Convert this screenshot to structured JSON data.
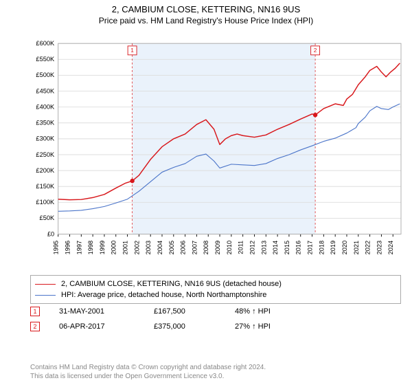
{
  "title": "2, CAMBIUM CLOSE, KETTERING, NN16 9US",
  "subtitle": "Price paid vs. HM Land Registry's House Price Index (HPI)",
  "chart": {
    "type": "line",
    "background_color": "#ffffff",
    "band_color": "#eaf2fb",
    "panel_border": "#aaaaaa",
    "grid_color": "#dddddd",
    "axis_font_size": 10,
    "x_years": [
      1995,
      1996,
      1997,
      1998,
      1999,
      2000,
      2001,
      2002,
      2003,
      2004,
      2005,
      2006,
      2007,
      2008,
      2009,
      2010,
      2011,
      2012,
      2013,
      2014,
      2015,
      2016,
      2017,
      2018,
      2019,
      2020,
      2021,
      2022,
      2023,
      2024
    ],
    "ylim": [
      0,
      600000
    ],
    "ytick_step": 50000,
    "ytick_format_prefix": "£",
    "ytick_format_suffix": "K",
    "series": [
      {
        "name": "price_paid",
        "label": "2, CAMBIUM CLOSE, KETTERING, NN16 9US (detached house)",
        "color": "#d8181c",
        "width": 1.6,
        "points": [
          [
            1995.0,
            110000
          ],
          [
            1996.0,
            108000
          ],
          [
            1997.0,
            109000
          ],
          [
            1998.0,
            115000
          ],
          [
            1999.0,
            125000
          ],
          [
            2000.0,
            145000
          ],
          [
            2000.8,
            160000
          ],
          [
            2001.42,
            167500
          ],
          [
            2002.0,
            185000
          ],
          [
            2003.0,
            235000
          ],
          [
            2004.0,
            275000
          ],
          [
            2005.0,
            300000
          ],
          [
            2006.0,
            315000
          ],
          [
            2007.0,
            345000
          ],
          [
            2007.8,
            360000
          ],
          [
            2008.5,
            330000
          ],
          [
            2009.0,
            282000
          ],
          [
            2009.5,
            300000
          ],
          [
            2010.0,
            310000
          ],
          [
            2010.5,
            315000
          ],
          [
            2011.0,
            310000
          ],
          [
            2012.0,
            305000
          ],
          [
            2013.0,
            312000
          ],
          [
            2014.0,
            330000
          ],
          [
            2015.0,
            345000
          ],
          [
            2016.0,
            362000
          ],
          [
            2017.0,
            378000
          ],
          [
            2017.27,
            375000
          ],
          [
            2018.0,
            395000
          ],
          [
            2019.0,
            410000
          ],
          [
            2019.7,
            405000
          ],
          [
            2020.0,
            425000
          ],
          [
            2020.5,
            440000
          ],
          [
            2021.0,
            470000
          ],
          [
            2021.6,
            495000
          ],
          [
            2022.0,
            515000
          ],
          [
            2022.6,
            528000
          ],
          [
            2023.0,
            510000
          ],
          [
            2023.4,
            495000
          ],
          [
            2023.8,
            510000
          ],
          [
            2024.2,
            522000
          ],
          [
            2024.6,
            538000
          ]
        ]
      },
      {
        "name": "hpi",
        "label": "HPI: Average price, detached house, North Northamptonshire",
        "color": "#4a74c9",
        "width": 1.2,
        "points": [
          [
            1995.0,
            72000
          ],
          [
            1996.0,
            73000
          ],
          [
            1997.0,
            75000
          ],
          [
            1998.0,
            80000
          ],
          [
            1999.0,
            87000
          ],
          [
            2000.0,
            98000
          ],
          [
            2001.0,
            110000
          ],
          [
            2002.0,
            135000
          ],
          [
            2003.0,
            165000
          ],
          [
            2004.0,
            195000
          ],
          [
            2005.0,
            210000
          ],
          [
            2006.0,
            222000
          ],
          [
            2007.0,
            245000
          ],
          [
            2007.8,
            252000
          ],
          [
            2008.5,
            230000
          ],
          [
            2009.0,
            208000
          ],
          [
            2010.0,
            220000
          ],
          [
            2011.0,
            218000
          ],
          [
            2012.0,
            216000
          ],
          [
            2013.0,
            222000
          ],
          [
            2014.0,
            238000
          ],
          [
            2015.0,
            250000
          ],
          [
            2016.0,
            265000
          ],
          [
            2017.0,
            278000
          ],
          [
            2018.0,
            292000
          ],
          [
            2019.0,
            302000
          ],
          [
            2020.0,
            318000
          ],
          [
            2020.8,
            335000
          ],
          [
            2021.0,
            348000
          ],
          [
            2021.6,
            368000
          ],
          [
            2022.0,
            388000
          ],
          [
            2022.6,
            402000
          ],
          [
            2023.0,
            395000
          ],
          [
            2023.6,
            392000
          ],
          [
            2024.0,
            400000
          ],
          [
            2024.6,
            410000
          ]
        ]
      }
    ],
    "sale_markers": [
      {
        "n": "1",
        "year": 2001.42,
        "value": 167500,
        "color": "#d8181c"
      },
      {
        "n": "2",
        "year": 2017.27,
        "value": 375000,
        "color": "#d8181c"
      }
    ],
    "marker_line_color": "#d8181c",
    "marker_line_dash": "3,3"
  },
  "legend": {
    "border": "#aaaaaa",
    "rows": [
      {
        "color": "#d8181c",
        "label": "2, CAMBIUM CLOSE, KETTERING, NN16 9US (detached house)"
      },
      {
        "color": "#4a74c9",
        "label": "HPI: Average price, detached house, North Northamptonshire"
      }
    ]
  },
  "marker_table": {
    "rows": [
      {
        "n": "1",
        "date": "31-MAY-2001",
        "price": "£167,500",
        "delta": "48% ↑ HPI",
        "color": "#d8181c"
      },
      {
        "n": "2",
        "date": "06-APR-2017",
        "price": "£375,000",
        "delta": "27% ↑ HPI",
        "color": "#d8181c"
      }
    ]
  },
  "footer": {
    "line1": "Contains HM Land Registry data © Crown copyright and database right 2024.",
    "line2": "This data is licensed under the Open Government Licence v3.0.",
    "color": "#888888"
  }
}
